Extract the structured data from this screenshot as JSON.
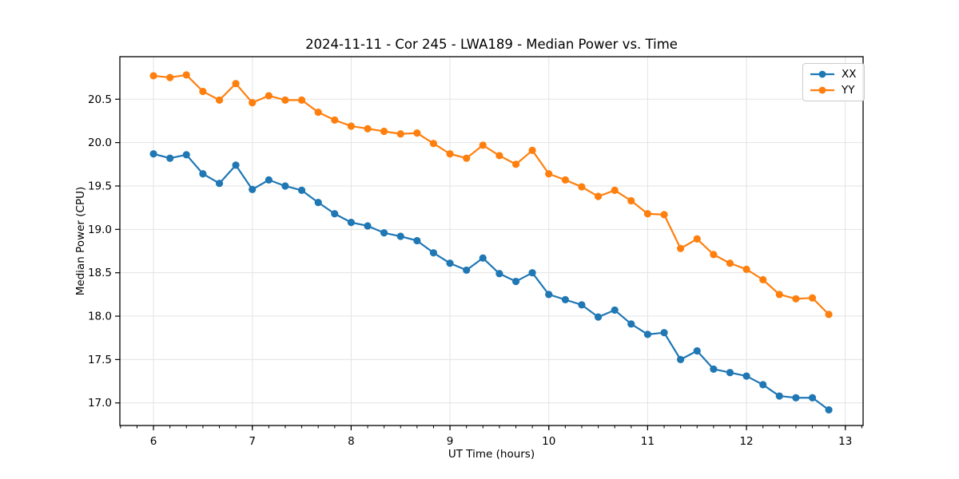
{
  "title": "2024-11-11 - Cor 245 - LWA189 - Median Power vs. Time",
  "legend": [
    {
      "label": "XX",
      "color": "#1f77b4"
    },
    {
      "label": "YY",
      "color": "#ff7f0e"
    }
  ],
  "chart_data": {
    "type": "line",
    "title": "2024-11-11 - Cor 245 - LWA189 - Median Power vs. Time",
    "xlabel": "UT Time (hours)",
    "ylabel": "Median Power (CPU)",
    "xlim": [
      5.66,
      13.18
    ],
    "ylim": [
      16.74,
      20.99
    ],
    "x_ticks": [
      6,
      7,
      8,
      9,
      10,
      11,
      12,
      13
    ],
    "x_tick_labels": [
      "6",
      "7",
      "8",
      "9",
      "10",
      "11",
      "12",
      "13"
    ],
    "x_minor_tick_step": 0.16667,
    "y_ticks": [
      17.0,
      17.5,
      18.0,
      18.5,
      19.0,
      19.5,
      20.0,
      20.5
    ],
    "y_tick_labels": [
      "17.0",
      "17.5",
      "18.0",
      "18.5",
      "19.0",
      "19.5",
      "20.0",
      "20.5"
    ],
    "grid": true,
    "grid_color": "#e3e3e3",
    "legend_position": "upper right",
    "x": [
      6.0,
      6.167,
      6.333,
      6.5,
      6.667,
      6.833,
      7.0,
      7.167,
      7.333,
      7.5,
      7.667,
      7.833,
      8.0,
      8.167,
      8.333,
      8.5,
      8.667,
      8.833,
      9.0,
      9.167,
      9.333,
      9.5,
      9.667,
      9.833,
      10.0,
      10.167,
      10.333,
      10.5,
      10.667,
      10.833,
      11.0,
      11.167,
      11.333,
      11.5,
      11.667,
      11.833,
      12.0,
      12.167,
      12.333,
      12.5,
      12.667,
      12.833
    ],
    "series": [
      {
        "name": "XX",
        "color": "#1f77b4",
        "values": [
          19.87,
          19.82,
          19.86,
          19.64,
          19.53,
          19.74,
          19.46,
          19.57,
          19.5,
          19.45,
          19.31,
          19.18,
          19.08,
          19.04,
          18.96,
          18.92,
          18.87,
          18.73,
          18.61,
          18.53,
          18.67,
          18.49,
          18.4,
          18.5,
          18.25,
          18.19,
          18.13,
          17.99,
          18.07,
          17.91,
          17.79,
          17.81,
          17.5,
          17.6,
          17.39,
          17.35,
          17.31,
          17.21,
          17.08,
          17.06,
          17.06,
          16.92
        ]
      },
      {
        "name": "YY",
        "color": "#ff7f0e",
        "values": [
          20.77,
          20.75,
          20.78,
          20.59,
          20.49,
          20.68,
          20.46,
          20.54,
          20.49,
          20.49,
          20.35,
          20.26,
          20.19,
          20.16,
          20.13,
          20.1,
          20.11,
          19.99,
          19.87,
          19.82,
          19.97,
          19.85,
          19.75,
          19.91,
          19.64,
          19.57,
          19.49,
          19.38,
          19.45,
          19.33,
          19.18,
          19.17,
          18.78,
          18.89,
          18.71,
          18.61,
          18.54,
          18.42,
          18.25,
          18.2,
          18.21,
          18.02
        ]
      }
    ]
  }
}
